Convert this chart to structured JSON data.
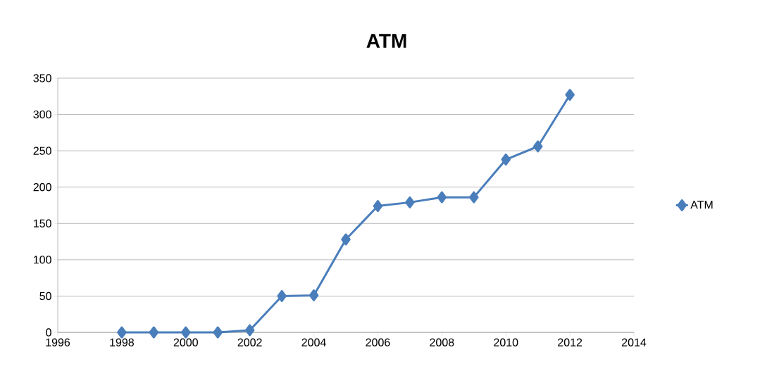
{
  "chart_data": {
    "type": "line",
    "title": "ATM",
    "x": [
      1998,
      1999,
      2000,
      2001,
      2002,
      2003,
      2004,
      2005,
      2006,
      2007,
      2008,
      2009,
      2010,
      2011,
      2012
    ],
    "series": [
      {
        "name": "ATM",
        "color": "#4a7ebb",
        "values": [
          0,
          0,
          0,
          0,
          3,
          50,
          51,
          128,
          174,
          179,
          186,
          186,
          238,
          256,
          327
        ]
      }
    ],
    "xlim": [
      1996,
      2014
    ],
    "xticks": [
      1996,
      1998,
      2000,
      2002,
      2004,
      2006,
      2008,
      2010,
      2012,
      2014
    ],
    "ylim": [
      0,
      350
    ],
    "yticks": [
      0,
      50,
      100,
      150,
      200,
      250,
      300,
      350
    ],
    "grid": "y",
    "legend": "right",
    "marker": "diamond",
    "line_style": "solid"
  }
}
